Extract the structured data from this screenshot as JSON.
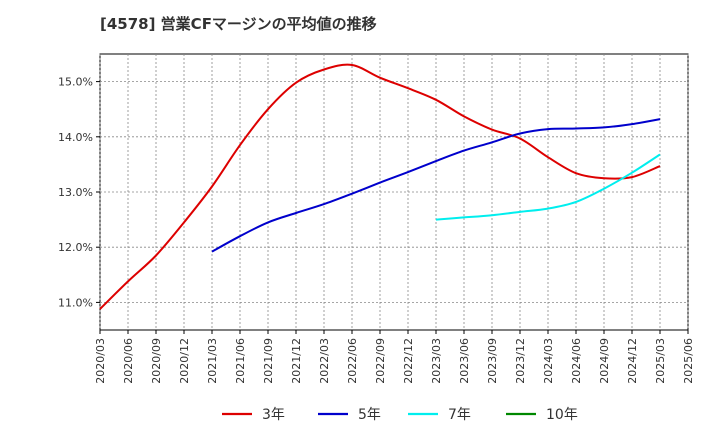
{
  "chart_data": {
    "type": "line",
    "title": "[4578]  営業CFマージンの平均値の推移",
    "xlabel": "",
    "ylabel": "",
    "ylim": [
      10.5,
      15.5
    ],
    "yticks": [
      11.0,
      12.0,
      13.0,
      14.0,
      15.0
    ],
    "ytick_labels": [
      "11.0%",
      "12.0%",
      "13.0%",
      "14.0%",
      "15.0%"
    ],
    "x_range": [
      "2020/03",
      "2025/06"
    ],
    "x_tick_labels": [
      "2020/03",
      "2020/06",
      "2020/09",
      "2020/12",
      "2021/03",
      "2021/06",
      "2021/09",
      "2021/12",
      "2022/03",
      "2022/06",
      "2022/09",
      "2022/12",
      "2023/03",
      "2023/06",
      "2023/09",
      "2023/12",
      "2024/03",
      "2024/06",
      "2024/09",
      "2024/12",
      "2025/03",
      "2025/06"
    ],
    "grid": true,
    "legend_position": "bottom",
    "series": [
      {
        "name": "3年",
        "color": "#dd0000",
        "points": [
          [
            "2020/03",
            10.88
          ],
          [
            "2020/06",
            11.38
          ],
          [
            "2020/09",
            11.85
          ],
          [
            "2020/12",
            12.45
          ],
          [
            "2021/03",
            13.1
          ],
          [
            "2021/06",
            13.85
          ],
          [
            "2021/09",
            14.5
          ],
          [
            "2021/12",
            14.98
          ],
          [
            "2022/03",
            15.22
          ],
          [
            "2022/06",
            15.3
          ],
          [
            "2022/09",
            15.07
          ],
          [
            "2022/12",
            14.88
          ],
          [
            "2023/03",
            14.67
          ],
          [
            "2023/06",
            14.37
          ],
          [
            "2023/09",
            14.13
          ],
          [
            "2023/12",
            13.97
          ],
          [
            "2024/03",
            13.63
          ],
          [
            "2024/06",
            13.34
          ],
          [
            "2024/09",
            13.25
          ],
          [
            "2024/12",
            13.27
          ],
          [
            "2025/03",
            13.47
          ]
        ]
      },
      {
        "name": "5年",
        "color": "#0000cc",
        "points": [
          [
            "2021/03",
            11.92
          ],
          [
            "2021/06",
            12.2
          ],
          [
            "2021/09",
            12.45
          ],
          [
            "2021/12",
            12.62
          ],
          [
            "2022/03",
            12.78
          ],
          [
            "2022/06",
            12.97
          ],
          [
            "2022/09",
            13.17
          ],
          [
            "2022/12",
            13.36
          ],
          [
            "2023/03",
            13.56
          ],
          [
            "2023/06",
            13.75
          ],
          [
            "2023/09",
            13.9
          ],
          [
            "2023/12",
            14.06
          ],
          [
            "2024/03",
            14.14
          ],
          [
            "2024/06",
            14.15
          ],
          [
            "2024/09",
            14.17
          ],
          [
            "2024/12",
            14.23
          ],
          [
            "2025/03",
            14.32
          ]
        ]
      },
      {
        "name": "7年",
        "color": "#00eeee",
        "points": [
          [
            "2023/03",
            12.5
          ],
          [
            "2023/06",
            12.54
          ],
          [
            "2023/09",
            12.58
          ],
          [
            "2023/12",
            12.64
          ],
          [
            "2024/03",
            12.7
          ],
          [
            "2024/06",
            12.82
          ],
          [
            "2024/09",
            13.06
          ],
          [
            "2024/12",
            13.35
          ],
          [
            "2025/03",
            13.68
          ]
        ]
      },
      {
        "name": "10年",
        "color": "#008800",
        "points": []
      }
    ]
  }
}
